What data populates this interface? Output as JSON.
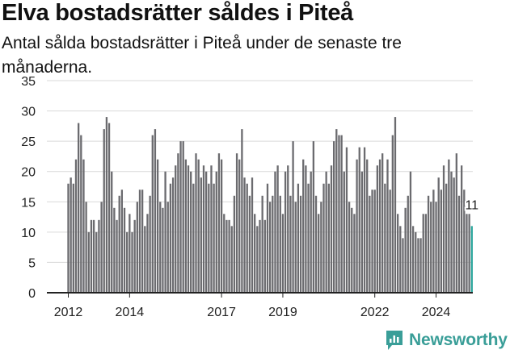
{
  "title": "Elva bostadsrätter såldes i Piteå",
  "subtitle": "Antal sålda bostadsrätter i Piteå under de senaste tre månaderna.",
  "brand": {
    "name": "Newsworthy",
    "icon": "newsworthy-logo-icon"
  },
  "colors": {
    "bar": "#6b6b6f",
    "highlight": "#2aa59c",
    "grid": "#d9d9d9",
    "axis": "#222222",
    "brand": "#3a9e98"
  },
  "chart_data": {
    "type": "bar",
    "ylim": [
      0,
      35
    ],
    "yticks": [
      0,
      5,
      10,
      15,
      20,
      25,
      30,
      35
    ],
    "xticks": [
      {
        "label": "2012",
        "index": 0
      },
      {
        "label": "2014",
        "index": 24
      },
      {
        "label": "2017",
        "index": 60
      },
      {
        "label": "2019",
        "index": 84
      },
      {
        "label": "2022",
        "index": 120
      },
      {
        "label": "2024",
        "index": 144
      }
    ],
    "grid": true,
    "start": "2012-01",
    "frequency": "monthly",
    "values": [
      18,
      19,
      18,
      22,
      28,
      26,
      22,
      15,
      10,
      12,
      12,
      10,
      12,
      15,
      27,
      29,
      28,
      20,
      14,
      12,
      16,
      17,
      14,
      10,
      13,
      10,
      12,
      15,
      17,
      17,
      11,
      13,
      16,
      26,
      27,
      22,
      15,
      14,
      20,
      15,
      18,
      19,
      21,
      23,
      25,
      25,
      22,
      21,
      20,
      18,
      23,
      22,
      19,
      21,
      20,
      18,
      21,
      18,
      20,
      23,
      22,
      13,
      12,
      12,
      11,
      16,
      23,
      22,
      27,
      19,
      18,
      16,
      19,
      13,
      11,
      12,
      16,
      12,
      18,
      15,
      16,
      20,
      21,
      16,
      13,
      20,
      21,
      16,
      25,
      15,
      18,
      16,
      22,
      21,
      18,
      20,
      25,
      16,
      13,
      15,
      18,
      20,
      18,
      21,
      25,
      27,
      26,
      26,
      20,
      24,
      15,
      14,
      13,
      22,
      24,
      20,
      24,
      22,
      16,
      17,
      17,
      21,
      22,
      23,
      18,
      22,
      17,
      26,
      29,
      13,
      11,
      9,
      14,
      16,
      20,
      11,
      10,
      9,
      9,
      13,
      13,
      16,
      15,
      17,
      15,
      19,
      17,
      21,
      18,
      22,
      20,
      19,
      23,
      16,
      21,
      17,
      13,
      13,
      11
    ],
    "highlight_index": 158,
    "highlight_label": "11",
    "xlabel": "",
    "ylabel": ""
  }
}
